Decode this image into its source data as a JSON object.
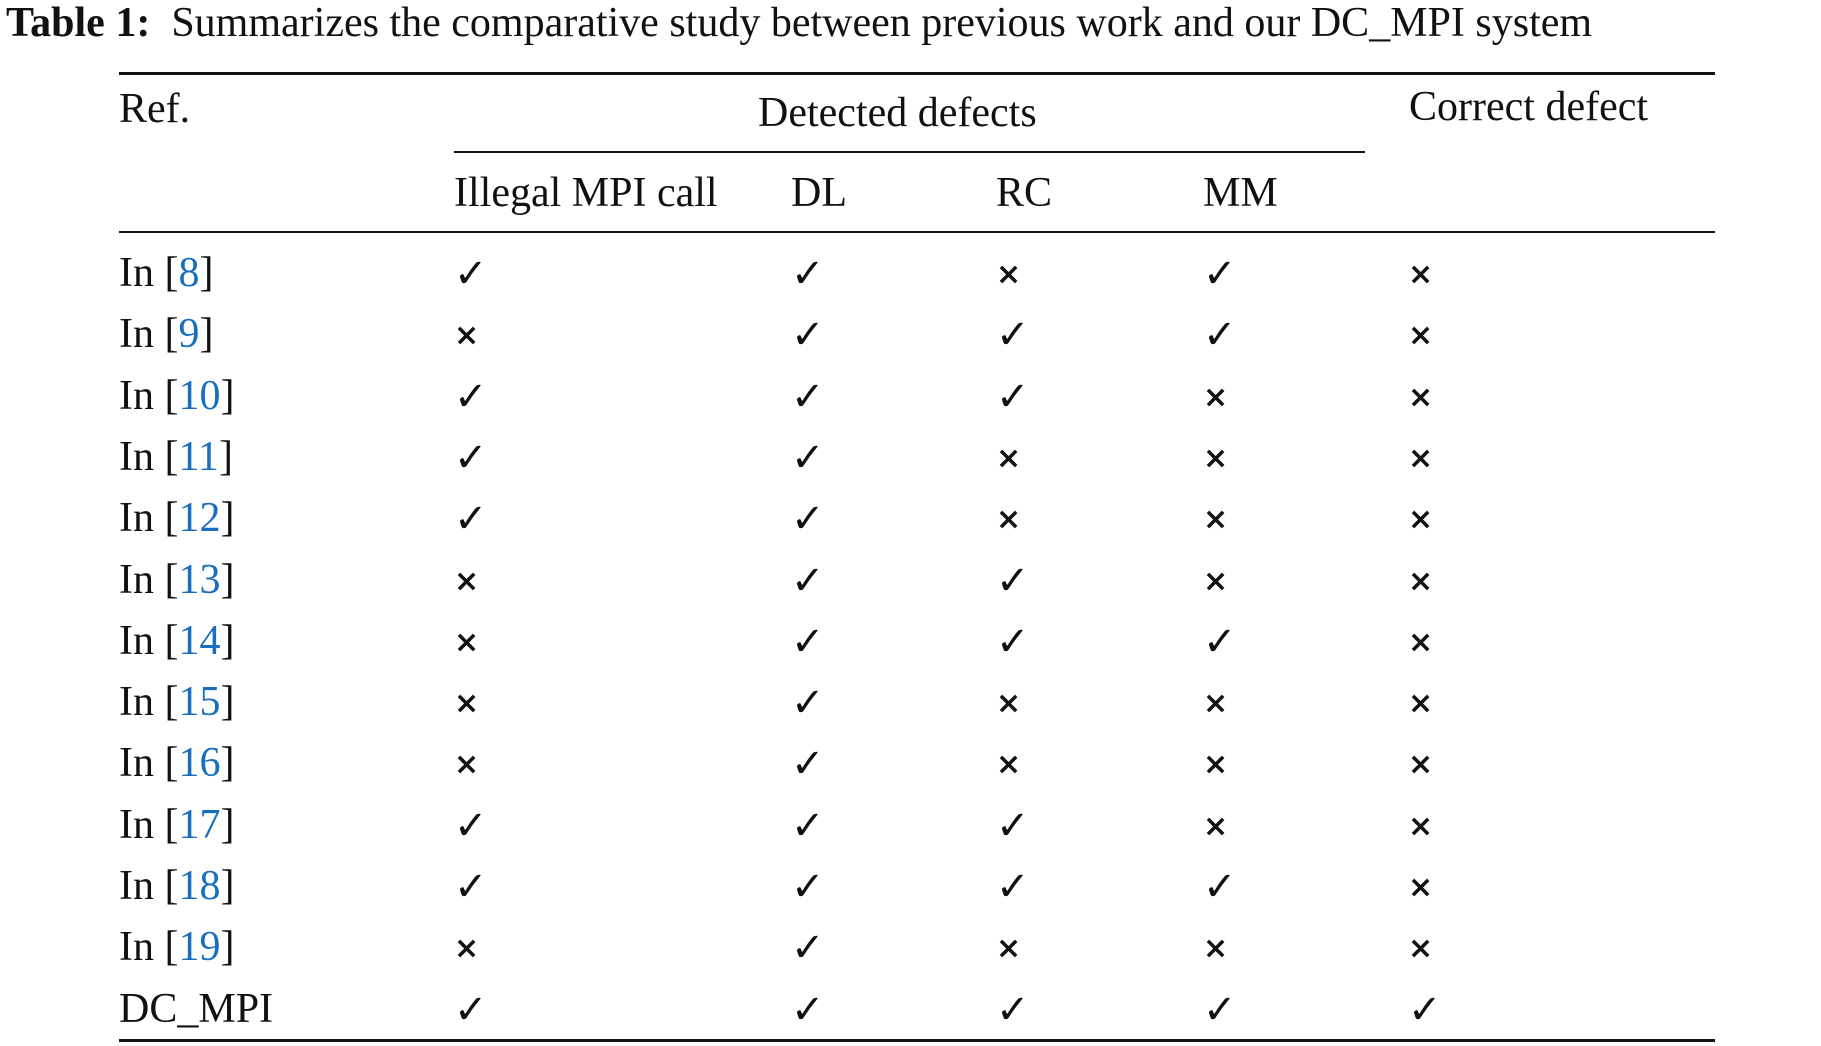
{
  "caption": {
    "label": "Table 1:",
    "text": "Summarizes the comparative study between previous work and our DC_MPI system"
  },
  "table": {
    "header": {
      "ref": "Ref.",
      "group": "Detected defects",
      "correct": "Correct defect",
      "subcolumns": [
        "Illegal MPI call",
        "DL",
        "RC",
        "MM"
      ]
    },
    "symbols": {
      "yes": "✓",
      "no": "×"
    },
    "rows": [
      {
        "prefix": "In [",
        "cite": "8",
        "suffix": "]",
        "values": [
          true,
          true,
          false,
          true,
          false
        ]
      },
      {
        "prefix": "In [",
        "cite": "9",
        "suffix": "]",
        "values": [
          false,
          true,
          true,
          true,
          false
        ]
      },
      {
        "prefix": "In [",
        "cite": "10",
        "suffix": "]",
        "values": [
          true,
          true,
          true,
          false,
          false
        ]
      },
      {
        "prefix": "In [",
        "cite": "11",
        "suffix": "]",
        "values": [
          true,
          true,
          false,
          false,
          false
        ]
      },
      {
        "prefix": "In [",
        "cite": "12",
        "suffix": "]",
        "values": [
          true,
          true,
          false,
          false,
          false
        ]
      },
      {
        "prefix": "In [",
        "cite": "13",
        "suffix": "]",
        "values": [
          false,
          true,
          true,
          false,
          false
        ]
      },
      {
        "prefix": "In [",
        "cite": "14",
        "suffix": "]",
        "values": [
          false,
          true,
          true,
          true,
          false
        ]
      },
      {
        "prefix": "In [",
        "cite": "15",
        "suffix": "]",
        "values": [
          false,
          true,
          false,
          false,
          false
        ]
      },
      {
        "prefix": "In [",
        "cite": "16",
        "suffix": "]",
        "values": [
          false,
          true,
          false,
          false,
          false
        ]
      },
      {
        "prefix": "In [",
        "cite": "17",
        "suffix": "]",
        "values": [
          true,
          true,
          true,
          false,
          false
        ]
      },
      {
        "prefix": "In [",
        "cite": "18",
        "suffix": "]",
        "values": [
          true,
          true,
          true,
          true,
          false
        ]
      },
      {
        "prefix": "In [",
        "cite": "19",
        "suffix": "]",
        "values": [
          false,
          true,
          false,
          false,
          false
        ]
      },
      {
        "prefix": "DC_MPI",
        "cite": "",
        "suffix": "",
        "values": [
          true,
          true,
          true,
          true,
          true
        ]
      }
    ]
  }
}
